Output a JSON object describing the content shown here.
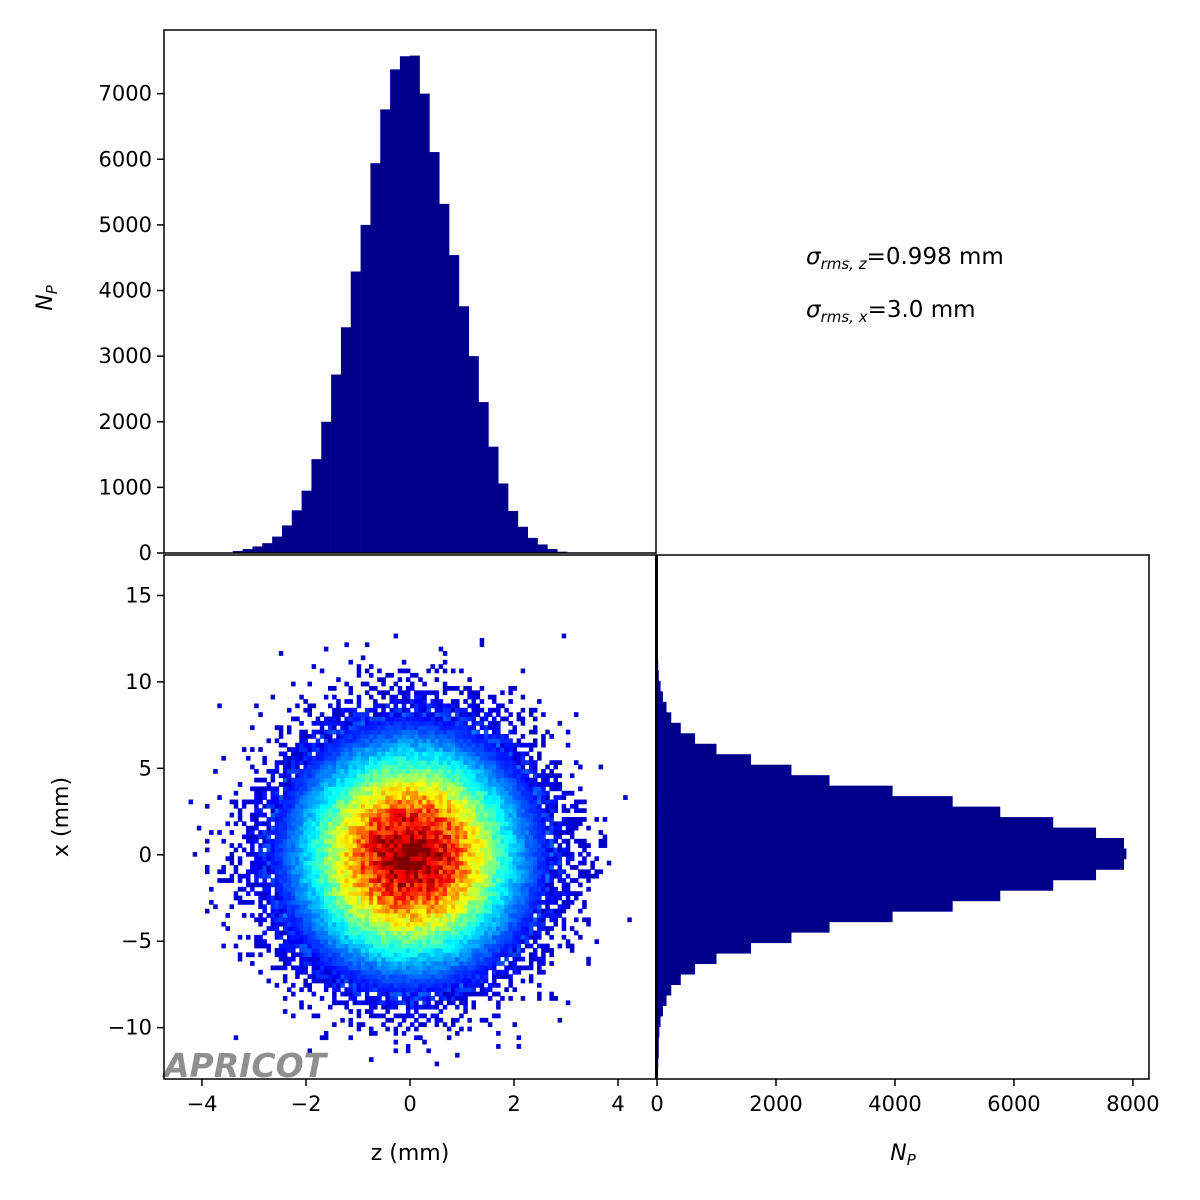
{
  "chart_data": [
    {
      "type": "bar",
      "panel": "top-histogram",
      "xlim": [
        -4.73,
        4.73
      ],
      "ylim": [
        0,
        7970
      ],
      "ylabel_main": "N",
      "ylabel_sub": "P",
      "yticks": [
        "0",
        "1000",
        "2000",
        "3000",
        "4000",
        "5000",
        "6000",
        "7000"
      ],
      "bin_edges_start": -4.73,
      "bin_width": 0.189,
      "values": [
        0,
        0,
        0,
        0,
        0,
        0,
        0,
        30,
        60,
        100,
        150,
        250,
        420,
        650,
        950,
        1430,
        2000,
        2720,
        3440,
        4290,
        5000,
        5940,
        6760,
        7370,
        7570,
        7580,
        7000,
        6110,
        5320,
        4540,
        3760,
        3000,
        2300,
        1620,
        1060,
        640,
        400,
        230,
        130,
        60,
        20,
        5,
        0,
        0,
        0,
        0,
        0,
        0,
        0,
        0
      ],
      "color": "#00008b"
    },
    {
      "type": "heatmap",
      "panel": "density-2d",
      "xlabel": "z (mm)",
      "ylabel": "x (mm)",
      "xlim": [
        -4.73,
        4.73
      ],
      "ylim": [
        -12.97,
        17.34
      ],
      "xticks": [
        {
          "v": -4,
          "t": "−4"
        },
        {
          "v": -2,
          "t": "−2"
        },
        {
          "v": 0,
          "t": "0"
        },
        {
          "v": 2,
          "t": "2"
        },
        {
          "v": 4,
          "t": "4"
        }
      ],
      "yticks": [
        {
          "v": -10,
          "t": "−10"
        },
        {
          "v": -5,
          "t": "−5"
        },
        {
          "v": 0,
          "t": "0"
        },
        {
          "v": 5,
          "t": "5"
        },
        {
          "v": 10,
          "t": "10"
        },
        {
          "v": 15,
          "t": "15"
        }
      ],
      "sigma_z": 0.998,
      "sigma_x": 3.0,
      "colormap": "jet"
    },
    {
      "type": "bar",
      "panel": "right-histogram",
      "orientation": "horizontal",
      "xlabel_main": "N",
      "xlabel_sub": "P",
      "xlim": [
        0,
        8270
      ],
      "ylim": [
        -12.97,
        17.34
      ],
      "xticks": [
        "0",
        "2000",
        "4000",
        "6000",
        "8000"
      ],
      "bin_edges_start": -12.97,
      "bin_width": 0.606,
      "values": [
        10,
        20,
        30,
        30,
        40,
        60,
        100,
        160,
        240,
        400,
        640,
        1000,
        1580,
        2260,
        2900,
        3960,
        4970,
        5770,
        6660,
        7380,
        7850,
        7890,
        7850,
        7380,
        6660,
        5770,
        4970,
        3960,
        2900,
        2260,
        1580,
        1000,
        640,
        400,
        240,
        160,
        100,
        60,
        30,
        20,
        10,
        10,
        0,
        0,
        0,
        0,
        0,
        0,
        0,
        0
      ],
      "color": "#00008b"
    }
  ],
  "stats": {
    "sigma_z": {
      "sym": "σ",
      "sub": "rms, z",
      "value": "=0.998 mm"
    },
    "sigma_x": {
      "sym": "σ",
      "sub": "rms, x",
      "value": "=3.0 mm"
    }
  },
  "watermark": "APRICOT"
}
